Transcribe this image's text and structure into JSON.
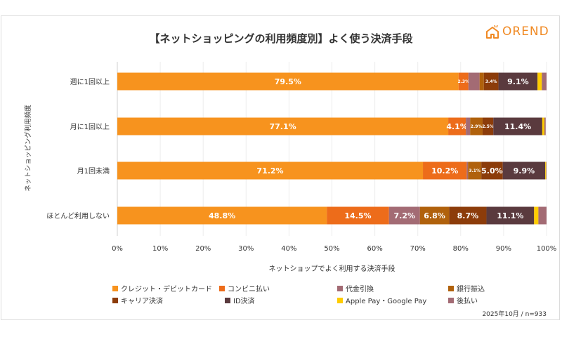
{
  "brand": {
    "logo_text": "OREND",
    "accent": "#f08a24"
  },
  "chart_data": {
    "type": "bar",
    "orientation": "horizontal",
    "stacked": true,
    "title": "【ネットショッピングの利用頻度別】よく使う決済手段",
    "xlabel": "ネットショップでよく利用する決済手段",
    "ylabel": "ネットショッピング利用頻度",
    "xlim": [
      0,
      100
    ],
    "x_ticks": [
      "0%",
      "10%",
      "20%",
      "30%",
      "40%",
      "50%",
      "60%",
      "70%",
      "80%",
      "90%",
      "100%"
    ],
    "grid": true,
    "legend_position": "bottom",
    "categories": [
      "週に1回以上",
      "月に1回以上",
      "月1回未満",
      "ほとんど利用しない"
    ],
    "series": [
      {
        "name": "クレジット・デビットカード",
        "color": "#f7931e",
        "values": [
          79.5,
          77.1,
          71.2,
          48.8
        ],
        "labels": [
          "79.5%",
          "77.1%",
          "71.2%",
          "48.8%"
        ]
      },
      {
        "name": "コンビニ払い",
        "color": "#ed6c1a",
        "values": [
          2.3,
          4.1,
          10.2,
          14.5
        ],
        "labels": [
          "2.3%",
          "4.1%",
          "10.2%",
          "14.5%"
        ]
      },
      {
        "name": "代金引換",
        "color": "#a36b74",
        "values": [
          2.6,
          1.0,
          0.3,
          7.2
        ],
        "labels": [
          "",
          "",
          "",
          "7.2%"
        ]
      },
      {
        "name": "銀行振込",
        "color": "#b0610c",
        "values": [
          1.0,
          2.9,
          3.1,
          6.8
        ],
        "labels": [
          "",
          "2.9%",
          "3.1%",
          "6.8%"
        ]
      },
      {
        "name": "キャリア決済",
        "color": "#8c3c0a",
        "values": [
          3.4,
          2.5,
          5.0,
          8.7
        ],
        "labels": [
          "3.4%",
          "2.5%",
          "5.0%",
          "8.7%"
        ]
      },
      {
        "name": "ID決済",
        "color": "#5a3a3e",
        "values": [
          9.1,
          11.4,
          9.9,
          11.1
        ],
        "labels": [
          "9.1%",
          "11.4%",
          "9.9%",
          "11.1%"
        ]
      },
      {
        "name": "Apple Pay・Google Pay",
        "color": "#ffcc00",
        "values": [
          1.0,
          0.5,
          0.2,
          1.0
        ],
        "labels": [
          "",
          "",
          "",
          ""
        ]
      },
      {
        "name": "後払い",
        "color": "#a36b74",
        "values": [
          1.1,
          0.3,
          0.1,
          1.9
        ],
        "labels": [
          "",
          "",
          "",
          ""
        ]
      }
    ],
    "footnote": "2025年10月 / n=933"
  }
}
